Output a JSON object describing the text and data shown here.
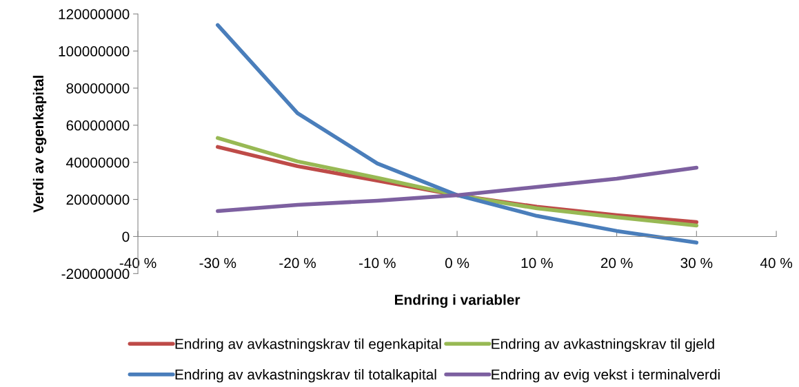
{
  "chart_data": {
    "type": "line",
    "xlabel": "Endring i variabler",
    "ylabel": "Verdi av egenkapital",
    "x": [
      -30,
      -20,
      -10,
      0,
      10,
      20,
      30
    ],
    "series": [
      {
        "name": "Endring av avkastningskrav til egenkapital",
        "color": "#be4b48",
        "values": [
          48300000,
          37900000,
          30100000,
          22300000,
          16000000,
          11500000,
          7800000
        ]
      },
      {
        "name": "Endring av avkastningskrav til gjeld",
        "color": "#98b954",
        "values": [
          53100000,
          40500000,
          31600000,
          22300000,
          15200000,
          10400000,
          5900000
        ]
      },
      {
        "name": "Endring av avkastningskrav til totalkapital",
        "color": "#4a7ebb",
        "values": [
          114000000,
          66500000,
          39400000,
          22300000,
          11100000,
          3000000,
          -3300000
        ]
      },
      {
        "name": "Endring av evig vekst i terminalverdi",
        "color": "#7d60a0",
        "values": [
          13700000,
          17100000,
          19300000,
          22300000,
          26700000,
          31200000,
          37100000
        ]
      }
    ],
    "xlim": [
      -40,
      40
    ],
    "xticks": [
      {
        "value": -40,
        "label": "-40 %"
      },
      {
        "value": -30,
        "label": "-30 %"
      },
      {
        "value": -20,
        "label": "-20 %"
      },
      {
        "value": -10,
        "label": "-10 %"
      },
      {
        "value": 0,
        "label": "0 %"
      },
      {
        "value": 10,
        "label": "10 %"
      },
      {
        "value": 20,
        "label": "20 %"
      },
      {
        "value": 30,
        "label": "30 %"
      },
      {
        "value": 40,
        "label": "40 %"
      }
    ],
    "ylim": [
      -20000000,
      120000000
    ],
    "yticks": [
      -20000000,
      0,
      20000000,
      40000000,
      60000000,
      80000000,
      100000000,
      120000000
    ],
    "grid": false,
    "legend": "bottom",
    "marker": "none",
    "line_style": "solid"
  }
}
